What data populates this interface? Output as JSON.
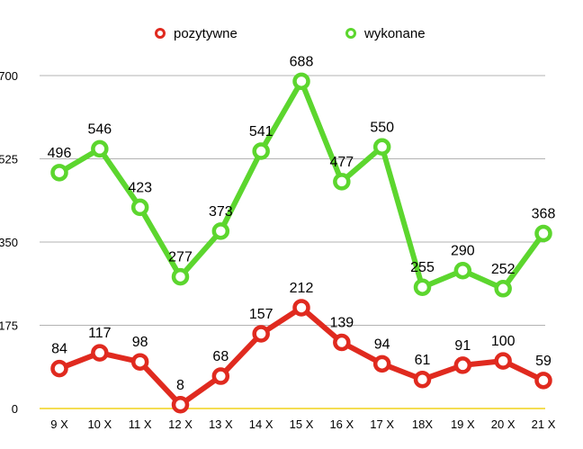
{
  "chart_data": {
    "type": "line",
    "categories": [
      "9 X",
      "10 X",
      "11 X",
      "12 X",
      "13 X",
      "14 X",
      "15 X",
      "16 X",
      "17 X",
      "18X",
      "19 X",
      "20 X",
      "21 X"
    ],
    "series": [
      {
        "name": "pozytywne",
        "color": "#e02a1f",
        "values": [
          84,
          117,
          98,
          8,
          68,
          157,
          212,
          139,
          94,
          61,
          91,
          100,
          59
        ]
      },
      {
        "name": "wykonane",
        "color": "#5cd62e",
        "values": [
          496,
          546,
          423,
          277,
          373,
          541,
          688,
          477,
          550,
          255,
          290,
          252,
          368
        ]
      }
    ],
    "yticks": [
      0,
      175,
      350,
      525,
      700
    ],
    "ylim": [
      0,
      700
    ],
    "grid": true,
    "gridline_color": "#b3b3b3",
    "baseline_color": "#f0d21a",
    "legend_position": "top"
  }
}
